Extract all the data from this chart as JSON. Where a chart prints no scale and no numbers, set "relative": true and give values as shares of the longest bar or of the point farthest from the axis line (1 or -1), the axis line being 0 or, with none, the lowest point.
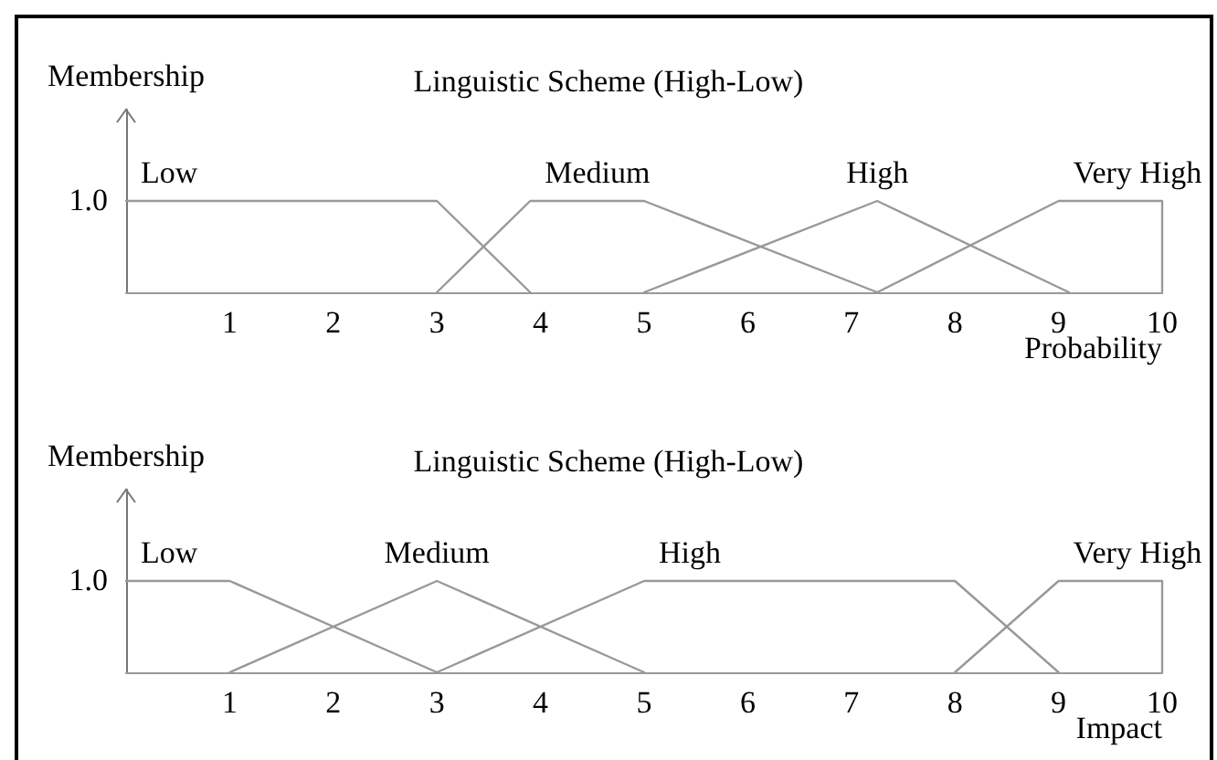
{
  "chart_data": [
    {
      "type": "line",
      "title": "Linguistic Scheme (High-Low)",
      "ylabel": "Membership",
      "xlabel": "Probability",
      "annotations": [
        "1.0"
      ],
      "relative": true,
      "xlim": [
        0,
        10
      ],
      "xticks": [
        1,
        2,
        3,
        4,
        5,
        6,
        7,
        8,
        9,
        10
      ],
      "grid": false,
      "legend": false,
      "marker": "none",
      "line_style": "solid",
      "series": [
        {
          "name": "Low",
          "color": "#999999",
          "x": [
            0,
            3,
            3.9
          ],
          "values": [
            1,
            1,
            0
          ]
        },
        {
          "name": "Medium",
          "color": "#999999",
          "x": [
            3,
            3.9,
            5,
            7.25
          ],
          "values": [
            0,
            1,
            1,
            0
          ]
        },
        {
          "name": "High",
          "color": "#999999",
          "x": [
            5,
            7.25,
            9.1
          ],
          "values": [
            0,
            1,
            0
          ]
        },
        {
          "name": "Very High",
          "color": "#999999",
          "x": [
            7.25,
            9,
            10,
            10
          ],
          "values": [
            0,
            1,
            1,
            0
          ]
        }
      ]
    },
    {
      "type": "line",
      "title": "Linguistic Scheme (High-Low)",
      "ylabel": "Membership",
      "xlabel": "Impact",
      "annotations": [
        "1.0"
      ],
      "relative": true,
      "xlim": [
        0,
        10
      ],
      "xticks": [
        1,
        2,
        3,
        4,
        5,
        6,
        7,
        8,
        9,
        10
      ],
      "grid": false,
      "legend": false,
      "marker": "none",
      "line_style": "solid",
      "series": [
        {
          "name": "Low",
          "color": "#999999",
          "x": [
            0,
            1,
            3
          ],
          "values": [
            1,
            1,
            0
          ]
        },
        {
          "name": "Medium",
          "color": "#999999",
          "x": [
            1,
            3,
            5
          ],
          "values": [
            0,
            1,
            0
          ]
        },
        {
          "name": "High",
          "color": "#999999",
          "x": [
            3,
            5,
            8,
            9
          ],
          "values": [
            0,
            1,
            1,
            0
          ]
        },
        {
          "name": "Very High",
          "color": "#999999",
          "x": [
            8,
            9,
            10,
            10
          ],
          "values": [
            0,
            1,
            1,
            0
          ]
        }
      ]
    }
  ]
}
